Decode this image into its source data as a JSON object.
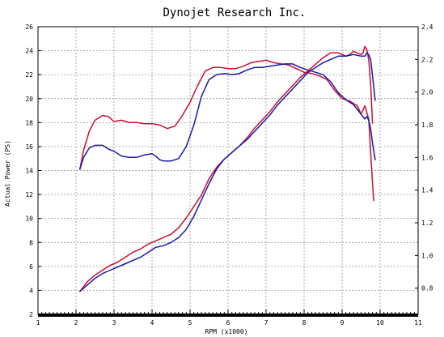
{
  "chart_data": {
    "type": "line",
    "title": "Dynojet  Research  Inc.",
    "xlabel": "RPM (x1000)",
    "ylabel": "Actual Power (PS)",
    "y2label": "",
    "xlim": [
      1,
      11
    ],
    "ylim": [
      2,
      26
    ],
    "y2lim": [
      0.64,
      2.4
    ],
    "xticks": [
      "1",
      "2",
      "3",
      "4",
      "5",
      "6",
      "7",
      "8",
      "9",
      "10",
      "11"
    ],
    "yticks": [
      "2",
      "4",
      "6",
      "8",
      "10",
      "12",
      "14",
      "16",
      "18",
      "20",
      "22",
      "24",
      "26"
    ],
    "y2ticks": [
      "0.8",
      "1.0",
      "1.2",
      "1.4",
      "1.6",
      "1.8",
      "2.0",
      "2.2",
      "2.4"
    ],
    "grid": true,
    "series": [
      {
        "axis": "left",
        "color": "#cc1133",
        "x": [
          2.1,
          2.2,
          2.35,
          2.5,
          2.7,
          2.85,
          3.0,
          3.2,
          3.4,
          3.6,
          3.8,
          4.0,
          4.2,
          4.4,
          4.6,
          4.8,
          5.0,
          5.2,
          5.4,
          5.6,
          5.8,
          6.0,
          6.2,
          6.4,
          6.6,
          6.8,
          7.0,
          7.2,
          7.4,
          7.6,
          7.8,
          8.0,
          8.2,
          8.4,
          8.6,
          8.8,
          9.0,
          9.2,
          9.4,
          9.5,
          9.6,
          9.7,
          9.75,
          9.8,
          9.83
        ],
        "y": [
          14.1,
          15.7,
          17.3,
          18.2,
          18.6,
          18.5,
          18.1,
          18.2,
          18.0,
          18.0,
          17.9,
          17.9,
          17.8,
          17.5,
          17.7,
          18.6,
          19.7,
          21.1,
          22.3,
          22.6,
          22.6,
          22.5,
          22.5,
          22.7,
          23.0,
          23.1,
          23.2,
          23.0,
          22.9,
          22.8,
          22.5,
          22.2,
          22.1,
          21.9,
          21.6,
          20.7,
          20.0,
          19.8,
          19.4,
          18.7,
          19.4,
          18.3,
          15.5,
          13.0,
          11.5
        ]
      },
      {
        "axis": "left",
        "color": "#1a1aa6",
        "x": [
          2.1,
          2.2,
          2.35,
          2.5,
          2.7,
          2.85,
          3.0,
          3.2,
          3.4,
          3.6,
          3.8,
          4.0,
          4.1,
          4.2,
          4.3,
          4.5,
          4.7,
          4.9,
          5.1,
          5.3,
          5.5,
          5.7,
          5.9,
          6.1,
          6.3,
          6.5,
          6.7,
          6.9,
          7.1,
          7.3,
          7.5,
          7.7,
          7.9,
          8.1,
          8.3,
          8.5,
          8.7,
          8.9,
          9.1,
          9.3,
          9.5,
          9.6,
          9.65,
          9.7,
          9.75,
          9.8,
          9.87
        ],
        "y": [
          14.1,
          15.1,
          15.9,
          16.1,
          16.1,
          15.8,
          15.6,
          15.2,
          15.1,
          15.1,
          15.3,
          15.4,
          15.2,
          14.9,
          14.8,
          14.8,
          15.0,
          16.0,
          17.8,
          20.2,
          21.6,
          22.0,
          22.1,
          22.0,
          22.1,
          22.4,
          22.6,
          22.6,
          22.7,
          22.8,
          22.9,
          22.9,
          22.6,
          22.4,
          22.2,
          22.0,
          21.4,
          20.5,
          19.9,
          19.5,
          18.7,
          18.3,
          18.5,
          18.2,
          17.5,
          16.3,
          14.9
        ]
      },
      {
        "axis": "right",
        "color": "#cc1133",
        "x": [
          2.1,
          2.3,
          2.5,
          2.7,
          2.9,
          3.1,
          3.3,
          3.5,
          3.7,
          3.9,
          4.1,
          4.3,
          4.5,
          4.7,
          4.9,
          5.1,
          5.3,
          5.5,
          5.7,
          5.9,
          6.1,
          6.3,
          6.5,
          6.7,
          6.9,
          7.1,
          7.3,
          7.5,
          7.7,
          7.9,
          8.1,
          8.3,
          8.5,
          8.7,
          8.9,
          9.1,
          9.2,
          9.3,
          9.4,
          9.5,
          9.55,
          9.6,
          9.65,
          9.7,
          9.75,
          9.8
        ],
        "y": [
          0.78,
          0.84,
          0.88,
          0.91,
          0.94,
          0.96,
          0.99,
          1.02,
          1.04,
          1.07,
          1.09,
          1.11,
          1.13,
          1.17,
          1.23,
          1.3,
          1.37,
          1.47,
          1.54,
          1.59,
          1.63,
          1.67,
          1.72,
          1.78,
          1.83,
          1.88,
          1.94,
          1.99,
          2.04,
          2.09,
          2.13,
          2.17,
          2.21,
          2.24,
          2.24,
          2.22,
          2.23,
          2.25,
          2.24,
          2.23,
          2.24,
          2.28,
          2.26,
          2.2,
          2.05,
          1.81
        ]
      },
      {
        "axis": "right",
        "color": "#1a1aa6",
        "x": [
          2.1,
          2.3,
          2.5,
          2.7,
          2.9,
          3.1,
          3.3,
          3.5,
          3.7,
          3.9,
          4.1,
          4.3,
          4.5,
          4.7,
          4.9,
          5.1,
          5.3,
          5.5,
          5.7,
          5.9,
          6.1,
          6.3,
          6.5,
          6.7,
          6.9,
          7.1,
          7.3,
          7.5,
          7.7,
          7.9,
          8.1,
          8.3,
          8.5,
          8.7,
          8.9,
          9.1,
          9.3,
          9.5,
          9.6,
          9.65,
          9.7,
          9.75,
          9.8,
          9.87
        ],
        "y": [
          0.78,
          0.82,
          0.86,
          0.89,
          0.91,
          0.93,
          0.95,
          0.97,
          0.99,
          1.02,
          1.05,
          1.06,
          1.08,
          1.11,
          1.16,
          1.24,
          1.34,
          1.44,
          1.53,
          1.59,
          1.63,
          1.67,
          1.71,
          1.76,
          1.81,
          1.86,
          1.92,
          1.97,
          2.02,
          2.07,
          2.12,
          2.15,
          2.18,
          2.2,
          2.22,
          2.22,
          2.23,
          2.22,
          2.22,
          2.24,
          2.23,
          2.2,
          2.1,
          1.95
        ]
      }
    ]
  }
}
